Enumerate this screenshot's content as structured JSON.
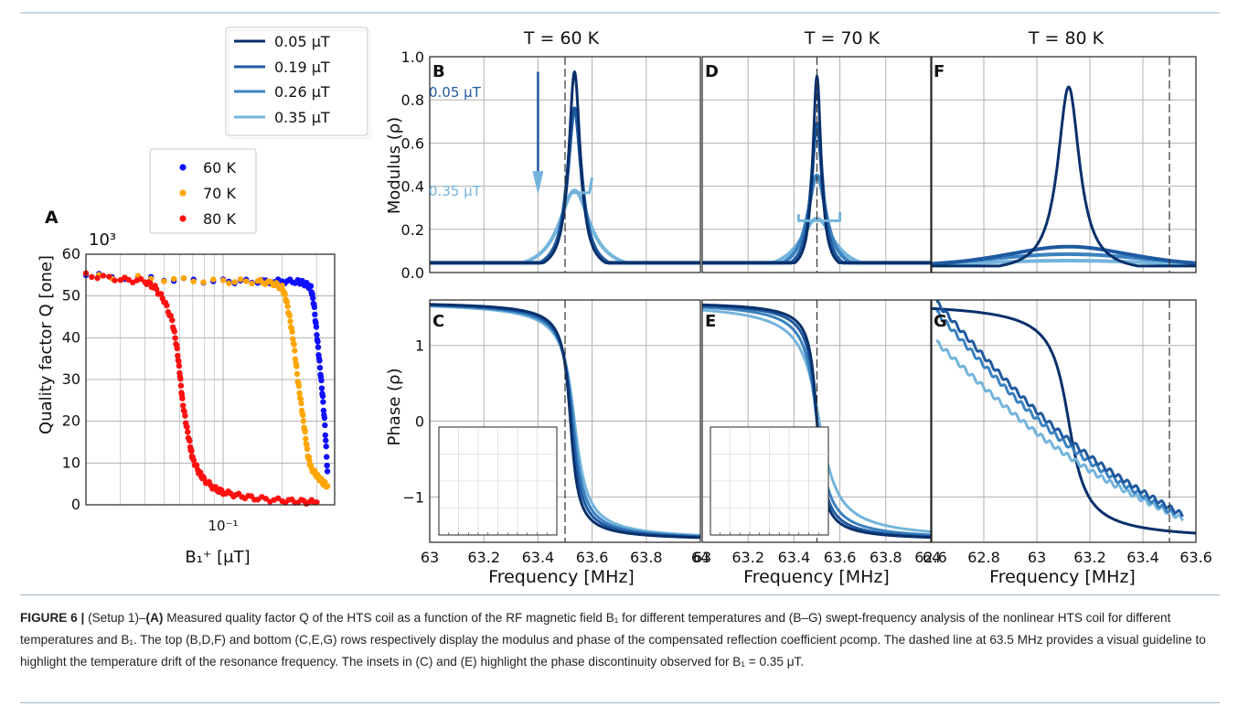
{
  "colors": {
    "c005": "#08306b",
    "c019": "#1f5aa0",
    "c026": "#3b82c0",
    "c035": "#74b4dc",
    "t60": "#1010ff",
    "t70": "#ffa500",
    "t80": "#ff1010",
    "grid": "#b0b0b0"
  },
  "legend_field": [
    "0.05 μT",
    "0.19 μT",
    "0.26 μT",
    "0.35 μT"
  ],
  "legend_temp": [
    "60 K",
    "70 K",
    "80 K"
  ],
  "column_titles": [
    "T = 60 K",
    "T = 70 K",
    "T = 80 K"
  ],
  "panel_letters": [
    "A",
    "B",
    "C",
    "D",
    "E",
    "F",
    "G"
  ],
  "annot_b1": "0.05 μT",
  "annot_b2": "0.35 μT",
  "caption": {
    "figure_label": "FIGURE 6 |",
    "setup": "(Setup 1)–",
    "text": "Measured quality factor Q of the HTS coil as a function of the RF magnetic field B₁ for different temperatures and (B–G) swept-frequency analysis of the nonlinear HTS coil for different temperatures and B₁. The top (B,D,F) and bottom (C,E,G) rows respectively display the modulus and phase of the compensated reflection coefficient ρcomp. The dashed line at 63.5 MHz provides a visual guideline to highlight the temperature drift of the resonance frequency. The insets in (C) and (E) highlight the phase discontinuity observed for B₁ = 0.35 μT."
  },
  "chart_data": [
    {
      "panel": "A",
      "type": "scatter",
      "xlabel": "B₁⁺ [μT]",
      "ylabel": "Quality factor Q [one]",
      "y_multiplier": "10³",
      "xscale": "log",
      "xlim": [
        0.02,
        0.37
      ],
      "ylim": [
        0,
        60
      ],
      "yticks": [
        0,
        10,
        20,
        30,
        40,
        50,
        60
      ],
      "xtick_label": "10⁻¹",
      "grid": true,
      "legend": "top-left (outside)",
      "series": [
        {
          "name": "60 K",
          "x": [
            0.02,
            0.05,
            0.1,
            0.15,
            0.2,
            0.24,
            0.26,
            0.28,
            0.29,
            0.3,
            0.31,
            0.32,
            0.33,
            0.34
          ],
          "y": [
            55,
            54,
            53.5,
            53.5,
            53.5,
            53.5,
            53,
            52,
            48,
            41,
            34,
            27,
            19,
            8
          ]
        },
        {
          "name": "70 K",
          "x": [
            0.02,
            0.05,
            0.1,
            0.15,
            0.18,
            0.2,
            0.21,
            0.22,
            0.23,
            0.24,
            0.25,
            0.26,
            0.27,
            0.28,
            0.3,
            0.32,
            0.34
          ],
          "y": [
            55,
            54,
            53.5,
            53.5,
            53,
            52,
            49,
            44,
            38,
            30,
            24,
            18,
            12,
            9,
            7,
            5.5,
            4.5
          ]
        },
        {
          "name": "80 K",
          "x": [
            0.02,
            0.03,
            0.04,
            0.045,
            0.05,
            0.055,
            0.058,
            0.06,
            0.062,
            0.065,
            0.068,
            0.07,
            0.075,
            0.08,
            0.09,
            0.1,
            0.12,
            0.15,
            0.2,
            0.25,
            0.3
          ],
          "y": [
            55,
            54,
            53.5,
            52,
            49,
            44,
            38,
            32,
            25,
            19,
            14,
            11,
            8,
            6,
            4,
            3,
            2.2,
            1.5,
            1,
            0.8,
            0.6
          ]
        }
      ]
    },
    {
      "panel": "B",
      "type": "line",
      "title": "T = 60 K",
      "ylabel": "Modulus (ρ)",
      "xlim": [
        63,
        64
      ],
      "ylim": [
        0,
        1
      ],
      "yticks": [
        0,
        0.2,
        0.4,
        0.6,
        0.8,
        1.0
      ],
      "dashed_x": 63.5,
      "series": [
        {
          "name": "0.05 μT",
          "f0": 63.535,
          "peak": 0.93,
          "width": 0.026
        },
        {
          "name": "0.19 μT",
          "f0": 63.535,
          "peak": 0.76,
          "width": 0.032
        },
        {
          "name": "0.26 μT",
          "f0": 63.535,
          "peak": 0.76,
          "width": 0.032
        },
        {
          "name": "0.35 μT",
          "f0": 63.535,
          "peak": 0.38,
          "width": 0.07
        }
      ]
    },
    {
      "panel": "C",
      "type": "line",
      "xlabel": "Frequency [MHz]",
      "ylabel": "Phase (ρ)",
      "xlim": [
        63,
        64
      ],
      "ylim": [
        -1.6,
        1.6
      ],
      "yticks": [
        -1,
        0,
        1
      ],
      "xticks": [
        "63",
        "63.2",
        "63.4",
        "63.6",
        "63.8",
        "64"
      ],
      "dashed_x": 63.5,
      "inset": true
    },
    {
      "panel": "D",
      "type": "line",
      "title": "T = 70 K",
      "xlim": [
        63,
        64
      ],
      "ylim": [
        0,
        1
      ],
      "dashed_x": 63.5,
      "series": [
        {
          "name": "0.05 μT",
          "f0": 63.5,
          "peak": 0.91,
          "width": 0.022
        },
        {
          "name": "0.19 μT",
          "f0": 63.5,
          "peak": 0.69,
          "width": 0.03
        },
        {
          "name": "0.26 μT",
          "f0": 63.5,
          "peak": 0.45,
          "width": 0.05
        },
        {
          "name": "0.35 μT",
          "f0": 63.5,
          "peak": 0.25,
          "width": 0.09
        }
      ]
    },
    {
      "panel": "E",
      "type": "line",
      "xlabel": "Frequency [MHz]",
      "xlim": [
        63,
        64
      ],
      "ylim": [
        -1.6,
        1.6
      ],
      "xticks": [
        "63",
        "63.2",
        "63.4",
        "63.6",
        "63.8",
        "64"
      ],
      "dashed_x": 63.5,
      "inset": true
    },
    {
      "panel": "F",
      "type": "line",
      "title": "T = 80 K",
      "xlim": [
        62.6,
        63.6
      ],
      "ylim": [
        0,
        1
      ],
      "dashed_x": 63.5,
      "series": [
        {
          "name": "0.05 μT",
          "f0": 63.12,
          "peak": 0.86,
          "width": 0.05
        },
        {
          "name": "0.19 μT",
          "f0": 63.12,
          "peak": 0.12,
          "width": 0.35
        },
        {
          "name": "0.26 μT",
          "f0": 63.12,
          "peak": 0.085,
          "width": 0.5
        },
        {
          "name": "0.35 μT",
          "f0": 63.12,
          "peak": 0.055,
          "width": 0.7
        }
      ]
    },
    {
      "panel": "G",
      "type": "line",
      "xlabel": "Frequency [MHz]",
      "xlim": [
        62.6,
        63.6
      ],
      "ylim": [
        -1.6,
        1.6
      ],
      "xticks": [
        "62.6",
        "62.8",
        "63",
        "63.2",
        "63.4",
        "63.6"
      ],
      "dashed_x": 63.5
    }
  ]
}
